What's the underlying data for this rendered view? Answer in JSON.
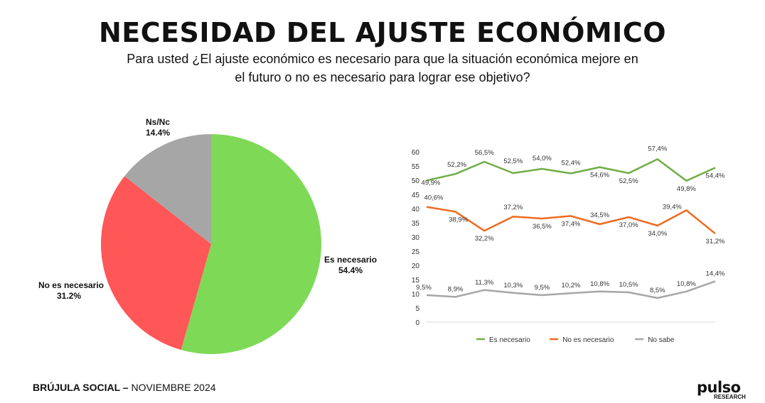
{
  "header": {
    "title": "NECESIDAD DEL AJUSTE ECONÓMICO",
    "subtitle_line1": "Para usted ¿El ajuste económico es necesario para que la situación económica mejore en",
    "subtitle_line2": "el futuro o no es necesario para lograr ese objetivo?"
  },
  "chart_data": [
    {
      "type": "pie",
      "slices": [
        {
          "label": "Es necesario",
          "value": 54.4,
          "value_label": "54.4%",
          "color": "#7ed957"
        },
        {
          "label": "No es necesario",
          "value": 31.2,
          "value_label": "31.2%",
          "color": "#ff5757"
        },
        {
          "label": "Ns/Nc",
          "value": 14.4,
          "value_label": "14.4%",
          "color": "#a6a6a6"
        }
      ]
    },
    {
      "type": "line",
      "ylim": [
        0,
        60
      ],
      "yticks": [
        "0",
        "5",
        "10",
        "15",
        "20",
        "25",
        "30",
        "35",
        "40",
        "45",
        "50",
        "55",
        "60"
      ],
      "grid": false,
      "legend": "bottom",
      "series": [
        {
          "name": "Es necesario",
          "color": "#70ad47",
          "values": [
            49.9,
            52.2,
            56.5,
            52.5,
            54.0,
            52.4,
            54.6,
            52.5,
            57.4,
            49.8,
            54.4
          ],
          "labels": [
            "49,9%",
            "52,2%",
            "56,5%",
            "52,5%",
            "54,0%",
            "52,4%",
            "54,6%",
            "52,5%",
            "57,4%",
            "49,8%",
            "54,4%"
          ]
        },
        {
          "name": "No es necesario",
          "color": "#ed6c1f",
          "values": [
            40.6,
            38.9,
            32.2,
            37.2,
            36.5,
            37.4,
            34.5,
            37.0,
            34.0,
            39.4,
            31.2
          ],
          "labels": [
            "40,6%",
            "38,9%",
            "32,2%",
            "37,2%",
            "36,5%",
            "37,4%",
            "34,5%",
            "37,0%",
            "34,0%",
            "39,4%",
            "31,2%"
          ]
        },
        {
          "name": "No sabe",
          "color": "#a6a6a6",
          "values": [
            9.5,
            8.9,
            11.3,
            10.3,
            9.5,
            10.2,
            10.8,
            10.5,
            8.5,
            10.8,
            14.4
          ],
          "labels": [
            "9,5%",
            "8,9%",
            "11,3%",
            "10,3%",
            "9,5%",
            "10,2%",
            "10,8%",
            "10,5%",
            "8,5%",
            "10,8%",
            "14,4%"
          ]
        }
      ]
    }
  ],
  "footer": {
    "brand": "BRÚJULA SOCIAL –",
    "date": "NOVIEMBRE 2024"
  },
  "logo": {
    "name": "pulso",
    "sub": "RESEARCH"
  }
}
